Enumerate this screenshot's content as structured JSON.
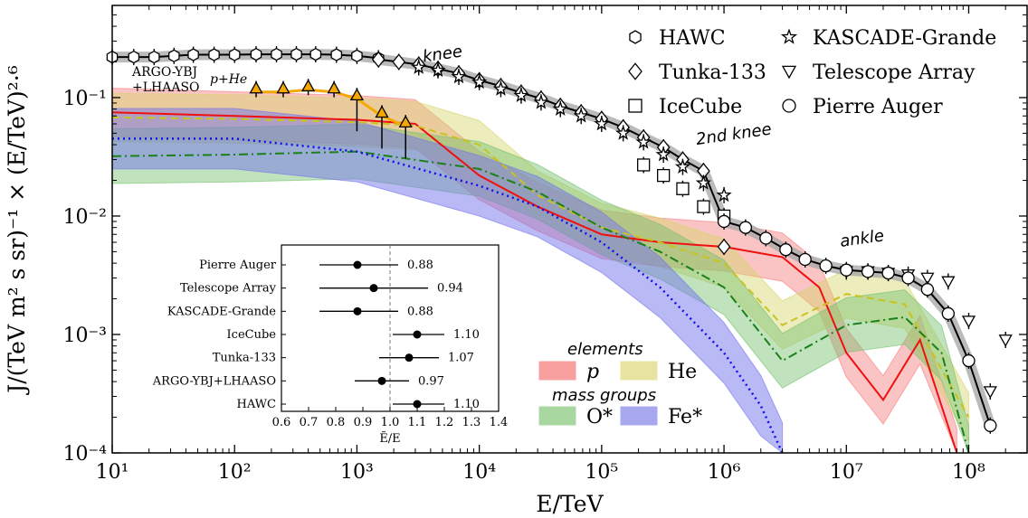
{
  "chart_data": {
    "type": "line",
    "xlabel": "E/TeV",
    "ylabel": "J/(TeV m² s sr)⁻¹ × (E/TeV)²·⁶",
    "x_scale": "log",
    "y_scale": "log",
    "xlim": [
      10,
      300000000
    ],
    "ylim": [
      0.0001,
      0.6
    ],
    "x_ticks": [
      {
        "v": 10,
        "label": "10¹"
      },
      {
        "v": 100,
        "label": "10²"
      },
      {
        "v": 1000,
        "label": "10³"
      },
      {
        "v": 10000,
        "label": "10⁴"
      },
      {
        "v": 100000,
        "label": "10⁵"
      },
      {
        "v": 1000000,
        "label": "10⁶"
      },
      {
        "v": 10000000,
        "label": "10⁷"
      },
      {
        "v": 100000000,
        "label": "10⁸"
      }
    ],
    "y_ticks": [
      {
        "v": 0.1,
        "label": "10⁻¹"
      },
      {
        "v": 0.01,
        "label": "10⁻²"
      },
      {
        "v": 0.001,
        "label": "10⁻³"
      },
      {
        "v": 0.0001,
        "label": "10⁻⁴"
      }
    ],
    "annotations": [
      {
        "text": "knee",
        "x": 3500,
        "y": 0.2
      },
      {
        "text": "2nd knee",
        "x": 600000,
        "y": 0.04
      },
      {
        "text": "ankle",
        "x": 9000000,
        "y": 0.0055
      }
    ],
    "argo_label": [
      "ARGO-YBJ",
      "+LHAASO"
    ],
    "argo_sub": "p+He",
    "legend": [
      {
        "name": "HAWC",
        "marker": "hexagon"
      },
      {
        "name": "KASCADE-Grande",
        "marker": "star"
      },
      {
        "name": "Tunka-133",
        "marker": "diamond"
      },
      {
        "name": "Telescope Array",
        "marker": "triangle-down"
      },
      {
        "name": "IceCube",
        "marker": "square"
      },
      {
        "name": "Pierre Auger",
        "marker": "circle"
      }
    ],
    "groups_legend": {
      "elements_title": "elements",
      "mass_groups_title": "mass groups",
      "entries": [
        {
          "name": "p",
          "color": "#f8a0a0"
        },
        {
          "name": "He",
          "color": "#e8e4a0"
        },
        {
          "name": "O*",
          "color": "#a8d8a0"
        },
        {
          "name": "Fe*",
          "color": "#a8a8f0"
        }
      ]
    },
    "series": [
      {
        "name": "HAWC",
        "x": [
          10,
          15,
          22,
          32,
          46,
          68,
          100,
          150,
          220,
          320,
          460,
          680,
          1000,
          1500
        ],
        "y": [
          0.22,
          0.22,
          0.22,
          0.225,
          0.23,
          0.23,
          0.23,
          0.232,
          0.232,
          0.232,
          0.232,
          0.23,
          0.225,
          0.215
        ]
      },
      {
        "name": "Tunka-133",
        "x": [
          1500,
          2200,
          3200,
          4600,
          6800,
          10000,
          15000,
          22000,
          32000,
          46000,
          68000,
          100000,
          150000,
          220000,
          320000,
          460000,
          680000,
          1000000
        ],
        "y": [
          0.21,
          0.2,
          0.19,
          0.175,
          0.16,
          0.14,
          0.125,
          0.11,
          0.098,
          0.085,
          0.075,
          0.066,
          0.056,
          0.046,
          0.038,
          0.03,
          0.024,
          0.0055
        ]
      },
      {
        "name": "KASCADE-Grande",
        "x": [
          3200,
          4600,
          6800,
          10000,
          15000,
          22000,
          32000,
          46000,
          68000,
          100000,
          150000,
          220000,
          320000,
          460000,
          680000,
          1000000
        ],
        "y": [
          0.18,
          0.17,
          0.15,
          0.135,
          0.118,
          0.104,
          0.091,
          0.08,
          0.07,
          0.06,
          0.05,
          0.042,
          0.033,
          0.026,
          0.019,
          0.015
        ]
      },
      {
        "name": "IceCube",
        "x": [
          220000,
          320000,
          460000,
          680000,
          1000000
        ],
        "y": [
          0.027,
          0.022,
          0.017,
          0.012,
          0.01
        ]
      },
      {
        "name": "Telescope Array",
        "x": [
          10000000,
          15000000,
          22000000,
          32000000,
          46000000,
          68000000,
          100000000,
          150000000,
          200000000
        ],
        "y": [
          0.0034,
          0.0034,
          0.0033,
          0.0032,
          0.003,
          0.0028,
          0.0013,
          0.00033,
          0.0009
        ]
      },
      {
        "name": "Pierre Auger",
        "x": [
          1000000,
          1500000,
          2200000,
          3200000,
          4600000,
          6800000,
          10000000,
          15000000,
          22000000,
          32000000,
          46000000,
          68000000,
          100000000,
          150000000
        ],
        "y": [
          0.009,
          0.008,
          0.0065,
          0.0052,
          0.0043,
          0.0038,
          0.0035,
          0.0034,
          0.0033,
          0.003,
          0.0024,
          0.0015,
          0.0006,
          0.00017
        ]
      },
      {
        "name": "ARGO-YBJ+LHAASO p+He",
        "x": [
          150,
          250,
          400,
          650,
          1000,
          1600,
          2500
        ],
        "y": [
          0.12,
          0.12,
          0.125,
          0.12,
          0.105,
          0.075,
          0.062
        ]
      },
      {
        "name": "p",
        "x": [
          10,
          100,
          1000,
          3000,
          10000,
          30000,
          100000,
          300000,
          1000000,
          3000000,
          6000000,
          10000000,
          20000000,
          40000000,
          80000000
        ],
        "y": [
          0.075,
          0.07,
          0.065,
          0.06,
          0.022,
          0.012,
          0.007,
          0.006,
          0.0055,
          0.0045,
          0.0025,
          0.0007,
          0.00028,
          0.0009,
          0.0001
        ]
      },
      {
        "name": "He",
        "x": [
          10,
          100,
          1000,
          3000,
          10000,
          30000,
          100000,
          300000,
          1000000,
          3000000,
          10000000,
          30000000,
          100000000
        ],
        "y": [
          0.068,
          0.066,
          0.062,
          0.058,
          0.04,
          0.015,
          0.008,
          0.006,
          0.004,
          0.0012,
          0.0022,
          0.0018,
          0.0002
        ]
      },
      {
        "name": "O*",
        "x": [
          10,
          100,
          1000,
          10000,
          30000,
          100000,
          300000,
          1000000,
          3000000,
          10000000,
          30000000,
          60000000,
          100000000
        ],
        "y": [
          0.032,
          0.033,
          0.035,
          0.025,
          0.016,
          0.008,
          0.005,
          0.0025,
          0.0006,
          0.0012,
          0.0014,
          0.0007,
          0.0001
        ]
      },
      {
        "name": "Fe*",
        "x": [
          10,
          100,
          1000,
          10000,
          30000,
          100000,
          300000,
          1000000,
          2000000,
          3000000
        ],
        "y": [
          0.045,
          0.045,
          0.035,
          0.018,
          0.012,
          0.006,
          0.0025,
          0.0007,
          0.00025,
          0.0001
        ]
      }
    ],
    "inset": {
      "xlabel": "Ẽ/E",
      "xlim": [
        0.6,
        1.4
      ],
      "x_ticks": [
        "0.6",
        "0.7",
        "0.8",
        "0.9",
        "1.0",
        "1.1",
        "1.2",
        "1.3",
        "1.4"
      ],
      "rows": [
        {
          "label": "Pierre Auger",
          "value": 0.88,
          "err": [
            0.74,
            1.03
          ],
          "text": "0.88"
        },
        {
          "label": "Telescope Array",
          "value": 0.94,
          "err": [
            0.74,
            1.14
          ],
          "text": "0.94"
        },
        {
          "label": "KASCADE-Grande",
          "value": 0.88,
          "err": [
            0.74,
            1.03
          ],
          "text": "0.88"
        },
        {
          "label": "IceCube",
          "value": 1.1,
          "err": [
            1.01,
            1.2
          ],
          "text": "1.10"
        },
        {
          "label": "Tunka-133",
          "value": 1.07,
          "err": [
            0.96,
            1.18
          ],
          "text": "1.07"
        },
        {
          "label": "ARGO-YBJ+LHAASO",
          "value": 0.97,
          "err": [
            0.87,
            1.07
          ],
          "text": "0.97"
        },
        {
          "label": "HAWC",
          "value": 1.1,
          "err": [
            1.01,
            1.2
          ],
          "text": "1.10"
        }
      ]
    }
  }
}
